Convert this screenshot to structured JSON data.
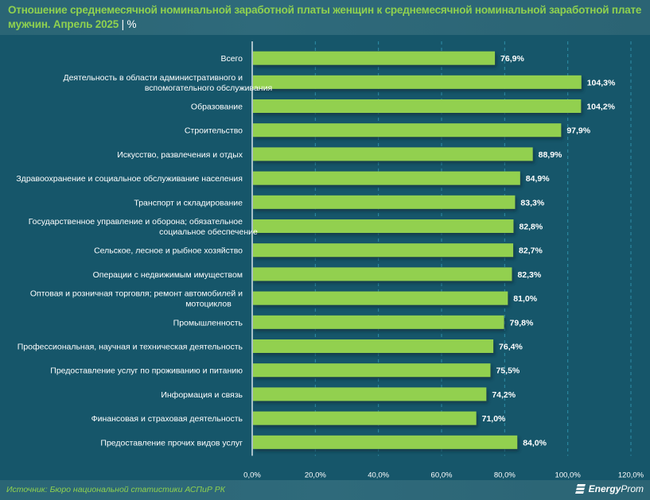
{
  "header": {
    "title": "Отношение среднемесячной номинальной заработной платы женщин к среднемесячной номинальной заработной плате мужчин. Апрель 2025",
    "separator": "|",
    "unit": "%"
  },
  "footer": {
    "source": "Источник: Бюро национальной статистики АСПиР РК",
    "logo_bold": "Energy",
    "logo_light": "Prom",
    "logo_icon": "energyprom-logo-icon"
  },
  "colors": {
    "background": "#16566a",
    "bar": "#92d050",
    "title": "#8fd14f",
    "gridline": "#2f8fa8",
    "text": "#ffffff"
  },
  "chart_data": {
    "type": "bar",
    "orientation": "horizontal",
    "title": "Отношение среднемесячной номинальной заработной платы женщин к среднемесячной номинальной заработной плате мужчин. Апрель 2025",
    "xlabel": "",
    "ylabel": "",
    "unit": "%",
    "xlim": [
      0,
      120
    ],
    "xticks": [
      0,
      20,
      40,
      60,
      80,
      100,
      120
    ],
    "xtick_labels": [
      "0,0%",
      "20,0%",
      "40,0%",
      "60,0%",
      "80,0%",
      "100,0%",
      "120,0%"
    ],
    "grid": "vertical dashed",
    "legend": "none",
    "categories": [
      [
        "Всего"
      ],
      [
        "Деятельность в области административного и",
        "вспомогательного обслуживания"
      ],
      [
        "Образование"
      ],
      [
        "Строительство"
      ],
      [
        "Искусство, развлечения и отдых"
      ],
      [
        "Здравоохранение и социальное обслуживание населения"
      ],
      [
        "Транспорт и складирование"
      ],
      [
        "Государственное управление и оборона; обязательное",
        "социальное обеспечение"
      ],
      [
        "Сельское, лесное и рыбное хозяйство"
      ],
      [
        "Операции с недвижимым имуществом"
      ],
      [
        "Оптовая и розничная торговля; ремонт автомобилей и",
        "мотоциклов"
      ],
      [
        "Промышленность"
      ],
      [
        "Профессиональная, научная и техническая деятельность"
      ],
      [
        "Предоставление услуг по проживанию и питанию"
      ],
      [
        "Информация и связь"
      ],
      [
        "Финансовая и страховая деятельность"
      ],
      [
        "Предоставление прочих видов услуг"
      ]
    ],
    "values": [
      76.9,
      104.3,
      104.2,
      97.9,
      88.9,
      84.9,
      83.3,
      82.8,
      82.7,
      82.3,
      81.0,
      79.8,
      76.4,
      75.5,
      74.2,
      71.0,
      84.0
    ],
    "value_labels": [
      "76,9%",
      "104,3%",
      "104,2%",
      "97,9%",
      "88,9%",
      "84,9%",
      "83,3%",
      "82,8%",
      "82,7%",
      "82,3%",
      "81,0%",
      "79,8%",
      "76,4%",
      "75,5%",
      "74,2%",
      "71,0%",
      "84,0%"
    ]
  }
}
